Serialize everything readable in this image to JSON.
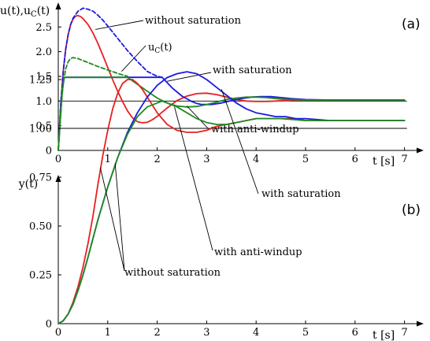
{
  "chart_data": [
    {
      "type": "line",
      "panel_label": "(a)",
      "ylabel": "u(t),u_C(t)",
      "xlabel": "t [s]",
      "xlim": [
        0,
        7.6
      ],
      "ylim": [
        0,
        3.0
      ],
      "xticks": [
        "0",
        "1",
        "2",
        "3",
        "4",
        "5",
        "6",
        "7"
      ],
      "yticks": [
        "0",
        "0.5",
        "1.0",
        "1.5",
        "2.0",
        "2.5"
      ],
      "reference_line": 1.0,
      "grid": false,
      "series": [
        {
          "key": "without",
          "color": "#e82020",
          "dash": "solid",
          "x": [
            0,
            0.05,
            0.1,
            0.15,
            0.2,
            0.25,
            0.3,
            0.35,
            0.4,
            0.45,
            0.5,
            0.6,
            0.7,
            0.8,
            0.9,
            1.0,
            1.1,
            1.2,
            1.3,
            1.4,
            1.5,
            1.6,
            1.7,
            1.8,
            1.9,
            2.0,
            2.2,
            2.4,
            2.6,
            2.8,
            3.0,
            3.2,
            3.4,
            3.6,
            3.8,
            4.0,
            4.2,
            4.4,
            4.6,
            4.8,
            5.0,
            5.5,
            6.0,
            6.5,
            7.0
          ],
          "y": [
            0,
            0.9,
            1.6,
            2.05,
            2.35,
            2.55,
            2.66,
            2.72,
            2.73,
            2.71,
            2.67,
            2.55,
            2.38,
            2.17,
            1.93,
            1.68,
            1.43,
            1.2,
            0.99,
            0.8,
            0.66,
            0.58,
            0.56,
            0.57,
            0.62,
            0.69,
            0.86,
            1.01,
            1.1,
            1.15,
            1.16,
            1.13,
            1.08,
            1.03,
            1.0,
            0.99,
            0.99,
            1.0,
            1.01,
            1.02,
            1.02,
            1.02,
            1.02,
            1.02,
            1.02
          ]
        },
        {
          "key": "with_uc",
          "color": "#1a1ae0",
          "dash": "dashed",
          "x": [
            0,
            0.05,
            0.1,
            0.15,
            0.2,
            0.25,
            0.3,
            0.4,
            0.5,
            0.6,
            0.7,
            0.8,
            0.9,
            1.0,
            1.2,
            1.4,
            1.6,
            1.8,
            2.0,
            2.1
          ],
          "y": [
            0,
            0.95,
            1.6,
            2.05,
            2.35,
            2.55,
            2.68,
            2.82,
            2.88,
            2.86,
            2.82,
            2.74,
            2.64,
            2.52,
            2.27,
            2.02,
            1.8,
            1.6,
            1.5,
            1.48
          ]
        },
        {
          "key": "with_u",
          "color": "#1a1ae0",
          "dash": "solid",
          "x": [
            0,
            0.08,
            0.12,
            2.1,
            2.3,
            2.5,
            2.7,
            2.8,
            2.9,
            3.1,
            3.3,
            3.5,
            3.7,
            3.9,
            4.1,
            4.3,
            4.5,
            4.7,
            5.0,
            5.5,
            6.0,
            6.5,
            7.0
          ],
          "y": [
            0,
            1.2,
            1.48,
            1.48,
            1.27,
            1.1,
            0.99,
            0.95,
            0.93,
            0.93,
            0.96,
            1.01,
            1.05,
            1.08,
            1.09,
            1.09,
            1.07,
            1.05,
            1.03,
            1.02,
            1.02,
            1.02,
            1.02
          ]
        },
        {
          "key": "antiwindup_uc",
          "color": "#1f8a1f",
          "dash": "dashed",
          "x": [
            0,
            0.05,
            0.1,
            0.15,
            0.2,
            0.25,
            0.3,
            0.4,
            0.5,
            0.6,
            0.8,
            1.0,
            1.2,
            1.4
          ],
          "y": [
            0,
            0.8,
            1.35,
            1.65,
            1.8,
            1.86,
            1.88,
            1.86,
            1.82,
            1.78,
            1.7,
            1.63,
            1.56,
            1.5
          ]
        },
        {
          "key": "antiwindup_u",
          "color": "#1f8a1f",
          "dash": "solid",
          "x": [
            0,
            0.08,
            0.12,
            1.4,
            1.6,
            1.8,
            2.0,
            2.2,
            2.4,
            2.6,
            2.8,
            3.0,
            3.2,
            3.4,
            3.6,
            3.8,
            4.0,
            4.2,
            4.5,
            5.0,
            5.5,
            6.0,
            6.5,
            7.0
          ],
          "y": [
            0,
            1.2,
            1.48,
            1.48,
            1.34,
            1.2,
            1.06,
            0.96,
            0.9,
            0.88,
            0.89,
            0.93,
            0.98,
            1.03,
            1.06,
            1.08,
            1.08,
            1.07,
            1.04,
            1.02,
            1.02,
            1.02,
            1.02,
            1.02
          ]
        }
      ],
      "annotations": {
        "without": "without saturation",
        "uc": "u",
        "uc_sub": "C",
        "uc_arg": "(t)",
        "with": "with saturation",
        "antiwindup": "with anti-windup"
      }
    },
    {
      "type": "line",
      "panel_label": "(b)",
      "ylabel": "y(t)",
      "xlabel": "t [s]",
      "xlim": [
        0,
        7.6
      ],
      "ylim": [
        0,
        1.38
      ],
      "xticks": [
        "0",
        "1",
        "2",
        "3",
        "4",
        "5",
        "6",
        "7"
      ],
      "yticks": [
        "0",
        "0.25",
        "0.50",
        "0.75",
        "1.00",
        "1.25"
      ],
      "reference_line": 1.0,
      "grid": false,
      "series": [
        {
          "key": "without",
          "color": "#e82020",
          "dash": "solid",
          "x": [
            0,
            0.1,
            0.2,
            0.3,
            0.4,
            0.5,
            0.6,
            0.7,
            0.8,
            0.9,
            1.0,
            1.1,
            1.2,
            1.3,
            1.4,
            1.5,
            1.6,
            1.7,
            1.8,
            1.9,
            2.0,
            2.2,
            2.4,
            2.6,
            2.8,
            3.0,
            3.2,
            3.4,
            3.6,
            3.8,
            4.0,
            4.2,
            4.4,
            4.6,
            4.8,
            5.0,
            5.5,
            6.0,
            6.5,
            7.0
          ],
          "y": [
            0,
            0.015,
            0.05,
            0.11,
            0.19,
            0.29,
            0.41,
            0.55,
            0.71,
            0.86,
            0.99,
            1.1,
            1.18,
            1.23,
            1.25,
            1.25,
            1.23,
            1.2,
            1.16,
            1.12,
            1.08,
            1.02,
            0.99,
            0.98,
            0.98,
            0.99,
            1.01,
            1.02,
            1.03,
            1.04,
            1.05,
            1.05,
            1.05,
            1.05,
            1.05,
            1.04,
            1.04,
            1.04,
            1.04,
            1.04
          ]
        },
        {
          "key": "with",
          "color": "#1a1ae0",
          "dash": "solid",
          "x": [
            0,
            0.1,
            0.2,
            0.3,
            0.4,
            0.5,
            0.6,
            0.8,
            1.0,
            1.2,
            1.4,
            1.6,
            1.8,
            2.0,
            2.2,
            2.4,
            2.6,
            2.8,
            3.0,
            3.2,
            3.4,
            3.6,
            3.8,
            4.0,
            4.2,
            4.4,
            4.6,
            4.8,
            5.0,
            5.5,
            6.0,
            6.5,
            7.0
          ],
          "y": [
            0,
            0.015,
            0.05,
            0.1,
            0.17,
            0.25,
            0.34,
            0.53,
            0.7,
            0.85,
            0.98,
            1.08,
            1.16,
            1.22,
            1.26,
            1.28,
            1.29,
            1.28,
            1.25,
            1.21,
            1.17,
            1.13,
            1.1,
            1.08,
            1.07,
            1.06,
            1.06,
            1.05,
            1.05,
            1.04,
            1.04,
            1.04,
            1.04
          ]
        },
        {
          "key": "antiwindup",
          "color": "#1f8a1f",
          "dash": "solid",
          "x": [
            0,
            0.1,
            0.2,
            0.3,
            0.4,
            0.5,
            0.6,
            0.8,
            1.0,
            1.2,
            1.4,
            1.6,
            1.8,
            2.0,
            2.1,
            2.2,
            2.4,
            2.6,
            2.8,
            3.0,
            3.2,
            3.4,
            3.6,
            3.8,
            4.0,
            4.2,
            4.5,
            5.0,
            5.5,
            6.0,
            6.5,
            7.0
          ],
          "y": [
            0,
            0.015,
            0.05,
            0.1,
            0.17,
            0.25,
            0.34,
            0.53,
            0.7,
            0.85,
            0.97,
            1.06,
            1.11,
            1.13,
            1.14,
            1.13,
            1.11,
            1.08,
            1.05,
            1.03,
            1.02,
            1.02,
            1.03,
            1.04,
            1.05,
            1.05,
            1.05,
            1.04,
            1.04,
            1.04,
            1.04,
            1.04
          ]
        }
      ],
      "annotations": {
        "with": "with saturation",
        "antiwindup": "with anti-windup",
        "without": "without saturation"
      }
    }
  ]
}
